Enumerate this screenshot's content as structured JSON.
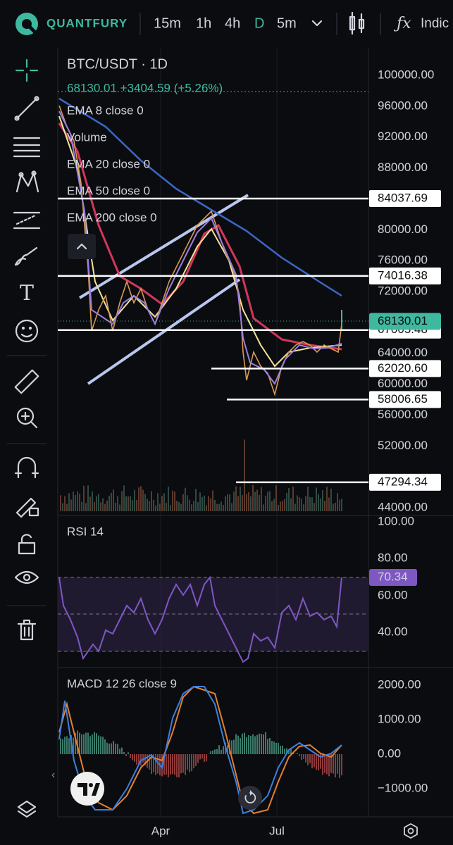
{
  "toolbar": {
    "brand": "QUANTFURY",
    "intervals": [
      "15m",
      "1h",
      "4h",
      "D",
      "5m"
    ],
    "indicators_button": "Indic"
  },
  "main_pane": {
    "symbol": "BTC/USDT · 1D",
    "quote": "68130.01 +3404.59 (+5.26%)",
    "indicators": [
      "EMA 8 close 0",
      "Volume",
      "EMA 20 close 0",
      "EMA 50 close 0",
      "EMA 200 close 0"
    ],
    "price_axis": [
      "100000.00",
      "96000.00",
      "92000.00",
      "88000.00",
      "80000.00",
      "76000.00",
      "72000.00",
      "64000.00",
      "60000.00",
      "56000.00",
      "52000.00",
      "44000.00"
    ],
    "levels": [
      "84037.69",
      "74016.38",
      "67005.48",
      "62020.60",
      "58006.65",
      "47294.34"
    ],
    "last_price": "68130.01"
  },
  "rsi_pane": {
    "title": "RSI 14",
    "axis": [
      "100.00",
      "80.00",
      "60.00",
      "40.00"
    ],
    "value": "70.34"
  },
  "macd_pane": {
    "title": "MACD 12 26 close 9",
    "axis": [
      "2000.00",
      "1000.00",
      "0.00",
      "−1000.00"
    ]
  },
  "time_axis": [
    "Apr",
    "Jul"
  ]
}
